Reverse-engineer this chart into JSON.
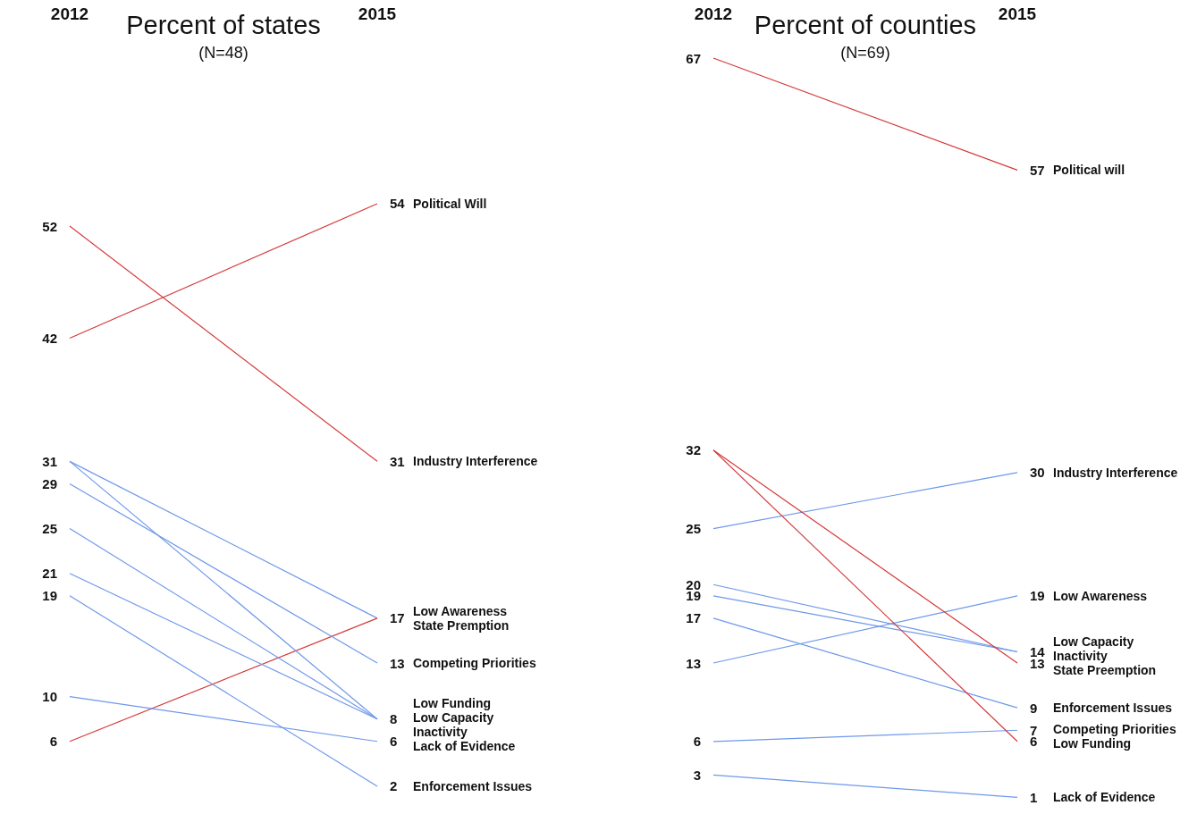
{
  "chart_data": [
    {
      "type": "line",
      "title": "Percent of states",
      "subtitle": "(N=48)",
      "categories": [
        "2012",
        "2015"
      ],
      "series": [
        {
          "name": "Political Will",
          "color": "#d43a3a",
          "values": [
            42,
            54
          ],
          "value_labels": [
            "42",
            "54"
          ]
        },
        {
          "name": "Industry Interference",
          "color": "#d43a3a",
          "values": [
            52,
            31
          ],
          "value_labels": [
            "52",
            "31"
          ]
        },
        {
          "name": "Low Awareness",
          "color": "#6e98ea",
          "values": [
            31,
            17
          ],
          "value_labels": [
            "31",
            "17"
          ]
        },
        {
          "name": "State Premption",
          "color": "#d43a3a",
          "values": [
            6,
            17
          ],
          "value_labels": [
            "6",
            null
          ]
        },
        {
          "name": "Competing Priorities",
          "color": "#6e98ea",
          "values": [
            29,
            13
          ],
          "value_labels": [
            "29",
            "13"
          ]
        },
        {
          "name": "Low Funding",
          "color": "#6e98ea",
          "values": [
            31,
            8
          ],
          "value_labels": [
            null,
            "8"
          ]
        },
        {
          "name": "Low Capacity",
          "color": "#6e98ea",
          "values": [
            25,
            8
          ],
          "value_labels": [
            "25",
            null
          ]
        },
        {
          "name": "Inactivity",
          "color": "#6e98ea",
          "values": [
            21,
            8
          ],
          "value_labels": [
            "21",
            null
          ]
        },
        {
          "name": "Lack of Evidence",
          "color": "#6e98ea",
          "values": [
            10,
            6
          ],
          "value_labels": [
            "10",
            "6"
          ]
        },
        {
          "name": "Enforcement Issues",
          "color": "#6e98ea",
          "values": [
            19,
            2
          ],
          "value_labels": [
            "19",
            "2"
          ]
        }
      ]
    },
    {
      "type": "line",
      "title": "Percent of counties",
      "subtitle": "(N=69)",
      "categories": [
        "2012",
        "2015"
      ],
      "series": [
        {
          "name": "Political will",
          "color": "#d43a3a",
          "values": [
            67,
            57
          ],
          "value_labels": [
            "67",
            "57"
          ]
        },
        {
          "name": "Industry Interference",
          "color": "#6e98ea",
          "values": [
            25,
            30
          ],
          "value_labels": [
            "25",
            "30"
          ]
        },
        {
          "name": "Low Awareness",
          "color": "#6e98ea",
          "values": [
            13,
            19
          ],
          "value_labels": [
            "13",
            "19"
          ]
        },
        {
          "name": "Low Capacity",
          "color": "#6e98ea",
          "values": [
            20,
            14
          ],
          "value_labels": [
            "20",
            "14"
          ]
        },
        {
          "name": "Inactivity",
          "color": "#6e98ea",
          "values": [
            19,
            14
          ],
          "value_labels": [
            "19",
            null
          ]
        },
        {
          "name": "State Preemption",
          "color": "#d43a3a",
          "values": [
            32,
            13
          ],
          "value_labels": [
            "32",
            "13"
          ]
        },
        {
          "name": "Enforcement Issues",
          "color": "#6e98ea",
          "values": [
            17,
            9
          ],
          "value_labels": [
            "17",
            "9"
          ]
        },
        {
          "name": "Competing Priorities",
          "color": "#6e98ea",
          "values": [
            6,
            7
          ],
          "value_labels": [
            "6",
            "7"
          ]
        },
        {
          "name": "Low Funding",
          "color": "#d43a3a",
          "values": [
            32,
            6
          ],
          "value_labels": [
            null,
            "6"
          ]
        },
        {
          "name": "Lack of Evidence",
          "color": "#6e98ea",
          "values": [
            3,
            1
          ],
          "value_labels": [
            "3",
            "1"
          ]
        }
      ]
    }
  ]
}
